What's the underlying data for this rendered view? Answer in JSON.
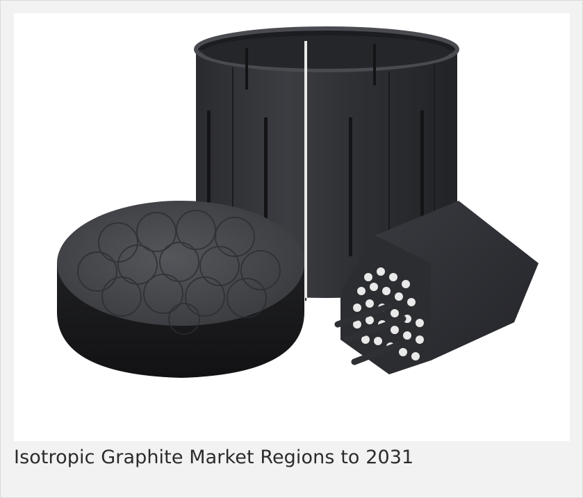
{
  "image": {
    "alt": "Isotropic graphite parts: slotted cylindrical sleeve, round perforated disc, and hexagonal honeycomb block with rods"
  },
  "caption": {
    "text": "Isotropic Graphite Market Regions to 2031"
  },
  "colors": {
    "page_background": "#f2f2f2",
    "photo_background": "#ffffff",
    "graphite_dark": "#2e2f33",
    "graphite_mid": "#46474c",
    "caption_text": "#2b2b2b"
  }
}
